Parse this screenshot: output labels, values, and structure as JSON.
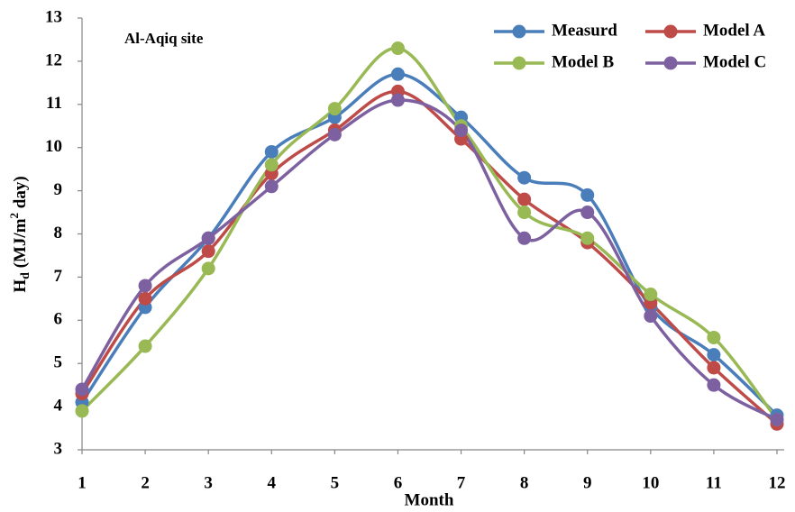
{
  "chart_data": {
    "type": "line",
    "annotation": "Al-Aqiq site",
    "x_label": "Month",
    "y_label": {
      "main": "H",
      "sub": "d",
      "middle": " (MJ/m",
      "sup": "2",
      "end": " day)"
    },
    "x": [
      1,
      2,
      3,
      4,
      5,
      6,
      7,
      8,
      9,
      10,
      11,
      12
    ],
    "xlim": [
      1,
      12
    ],
    "xticks": [
      1,
      2,
      3,
      4,
      5,
      6,
      7,
      8,
      9,
      10,
      11,
      12
    ],
    "ylim": [
      3,
      13
    ],
    "yticks": [
      3,
      4,
      5,
      6,
      7,
      8,
      9,
      10,
      11,
      12,
      13
    ],
    "grid": false,
    "smooth": true,
    "legend": "top-right",
    "series": [
      {
        "name": "Measurd",
        "color": "#4a7ebb",
        "values": [
          4.1,
          6.3,
          7.9,
          9.9,
          10.7,
          11.7,
          10.7,
          9.3,
          8.9,
          6.3,
          5.2,
          3.8
        ]
      },
      {
        "name": "Model A",
        "color": "#be4b48",
        "values": [
          4.3,
          6.5,
          7.6,
          9.4,
          10.4,
          11.3,
          10.2,
          8.8,
          7.8,
          6.4,
          4.9,
          3.6
        ]
      },
      {
        "name": "Model B",
        "color": "#98b954",
        "values": [
          3.9,
          5.4,
          7.2,
          9.6,
          10.9,
          12.3,
          10.5,
          8.5,
          7.9,
          6.6,
          5.6,
          3.7
        ]
      },
      {
        "name": "Model C",
        "color": "#7d60a0",
        "values": [
          4.4,
          6.8,
          7.9,
          9.1,
          10.3,
          11.1,
          10.4,
          7.9,
          8.5,
          6.1,
          4.5,
          3.7
        ]
      }
    ]
  }
}
